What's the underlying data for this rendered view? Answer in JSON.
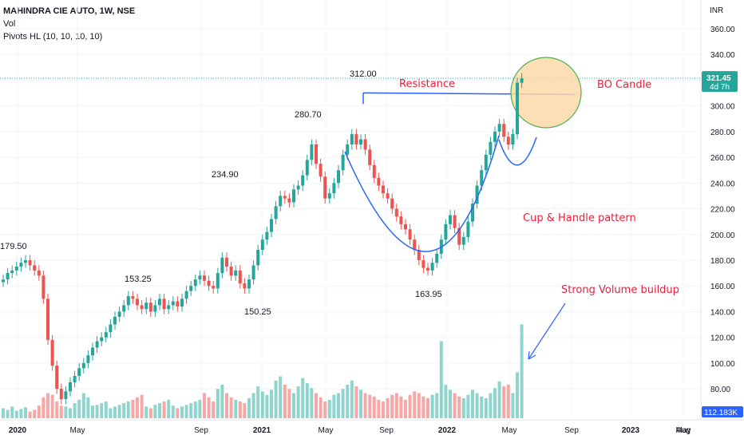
{
  "header": {
    "title": "MAHINDRA CIE AUTO, 1W, NSE",
    "vol_label": "Vol",
    "pivots_label": "Pivots HL (10, 10, 10, 10)"
  },
  "colors": {
    "up": "#26a69a",
    "down": "#ef5350",
    "vol_up": "#8fd5ce",
    "vol_down": "#f7a7a5",
    "line_blue": "#2962ff",
    "annotation_red": "#e91e3b",
    "circle_fill": "#fbd9a8",
    "circle_stroke": "#4caf50",
    "price_tag": "#26a69a",
    "volume_tag": "#2962ff"
  },
  "chart_data": {
    "type": "candlestick",
    "title": "MAHINDRA CIE AUTO, 1W, NSE",
    "currency_label": "INR",
    "y_ticks": [
      "360.00",
      "340.00",
      "320.00",
      "300.00",
      "280.00",
      "260.00",
      "240.00",
      "220.00",
      "200.00",
      "180.00",
      "160.00",
      "140.00",
      "120.00",
      "100.00",
      "80.00"
    ],
    "y_range": [
      66,
      372
    ],
    "x_ticks": [
      "2020",
      "May",
      "Sep",
      "2021",
      "May",
      "Sep",
      "2022",
      "May",
      "Sep",
      "2023",
      "May",
      "Aug"
    ],
    "last_price": "321.45",
    "countdown": "4d 7h",
    "volume_last": "112.183K",
    "pivots": [
      {
        "label": "179.50",
        "value": 179.5
      },
      {
        "label": "153.25",
        "value": 153.25
      },
      {
        "label": "234.90",
        "value": 234.9
      },
      {
        "label": "150.25",
        "value": 150.25
      },
      {
        "label": "280.70",
        "value": 280.7
      },
      {
        "label": "312.00",
        "value": 312.0
      },
      {
        "label": "163.95",
        "value": 163.95
      }
    ],
    "resistance_level": 312,
    "annotations": {
      "resistance": "Resistance",
      "bo_candle": "BO Candle",
      "cup_handle": "Cup & Handle pattern",
      "volume": "Strong Volume buildup"
    },
    "close_series": [
      165,
      170,
      172,
      175,
      178,
      180,
      176,
      172,
      168,
      150,
      118,
      98,
      80,
      72,
      78,
      85,
      90,
      96,
      100,
      106,
      112,
      117,
      120,
      124,
      130,
      136,
      140,
      145,
      152,
      150,
      145,
      142,
      147,
      140,
      145,
      150,
      142,
      145,
      148,
      144,
      150,
      156,
      160,
      165,
      168,
      164,
      160,
      158,
      170,
      182,
      175,
      168,
      172,
      162,
      158,
      165,
      176,
      188,
      196,
      202,
      212,
      222,
      230,
      228,
      225,
      235,
      238,
      246,
      258,
      270,
      255,
      245,
      228,
      232,
      240,
      250,
      262,
      270,
      278,
      270,
      274,
      266,
      254,
      244,
      238,
      232,
      228,
      220,
      214,
      208,
      204,
      196,
      188,
      180,
      174,
      172,
      178,
      185,
      196,
      208,
      215,
      205,
      192,
      198,
      210,
      224,
      238,
      250,
      262,
      272,
      280,
      286,
      276,
      270,
      278,
      318,
      321.45
    ],
    "volume_series": [
      12,
      10,
      14,
      9,
      11,
      13,
      8,
      10,
      15,
      25,
      30,
      28,
      20,
      15,
      14,
      12,
      18,
      22,
      30,
      25,
      15,
      16,
      18,
      20,
      12,
      14,
      16,
      18,
      20,
      22,
      25,
      28,
      14,
      12,
      16,
      18,
      20,
      22,
      15,
      12,
      14,
      16,
      18,
      20,
      22,
      30,
      25,
      20,
      35,
      40,
      30,
      25,
      22,
      20,
      18,
      24,
      30,
      38,
      32,
      28,
      34,
      45,
      50,
      40,
      35,
      30,
      38,
      48,
      42,
      36,
      30,
      25,
      20,
      22,
      28,
      30,
      35,
      40,
      45,
      38,
      34,
      30,
      28,
      26,
      22,
      20,
      24,
      28,
      30,
      26,
      22,
      28,
      32,
      30,
      26,
      24,
      28,
      30,
      92,
      40,
      34,
      30,
      26,
      24,
      28,
      34,
      30,
      26,
      24,
      30,
      36,
      44,
      38,
      40,
      30,
      55,
      112
    ]
  }
}
